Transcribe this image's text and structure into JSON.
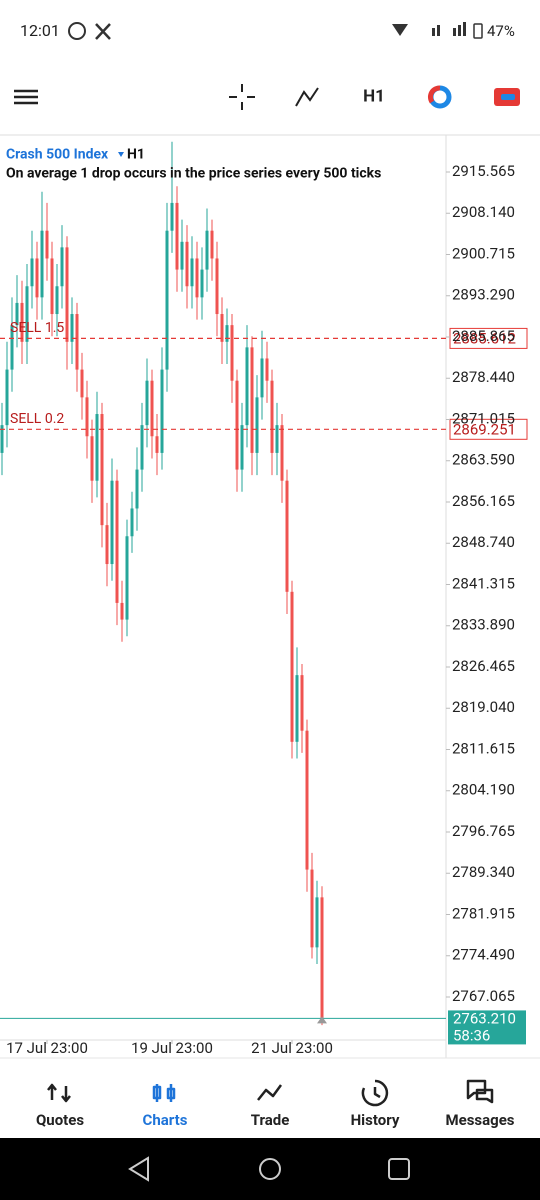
{
  "status_bar": {
    "time": "12:01",
    "battery": "47%"
  },
  "toolbar": {
    "timeframe": "H1"
  },
  "chart_data": {
    "type": "candlestick",
    "symbol": "Crash 500 Index",
    "timeframe": "H1",
    "description": "On average 1 drop occurs in the price series every 500 ticks",
    "up_color": "#26a69a",
    "down_color": "#ef5350",
    "open": [
      2865,
      2870,
      2880,
      2888,
      2892,
      2885,
      2895,
      2900,
      2893,
      2905,
      2900,
      2890,
      2895,
      2902,
      2885,
      2890,
      2880,
      2875,
      2868,
      2860,
      2872,
      2852,
      2845,
      2860,
      2838,
      2835,
      2850,
      2855,
      2862,
      2870,
      2878,
      2868,
      2865,
      2880,
      2905,
      2910,
      2898,
      2903,
      2895,
      2900,
      2893,
      2898,
      2905,
      2900,
      2890,
      2885,
      2888,
      2878,
      2862,
      2870,
      2884,
      2865,
      2875,
      2882,
      2878,
      2865,
      2870,
      2860,
      2840,
      2813,
      2825,
      2815,
      2790,
      2776,
      2785
    ],
    "high": [
      2874,
      2885,
      2893,
      2897,
      2896,
      2899,
      2905,
      2903,
      2912,
      2910,
      2903,
      2899,
      2906,
      2904,
      2893,
      2892,
      2883,
      2878,
      2871,
      2876,
      2874,
      2856,
      2864,
      2862,
      2842,
      2853,
      2858,
      2866,
      2874,
      2882,
      2880,
      2872,
      2884,
      2910,
      2921,
      2913,
      2907,
      2906,
      2904,
      2903,
      2902,
      2909,
      2907,
      2903,
      2893,
      2891,
      2890,
      2880,
      2874,
      2888,
      2886,
      2879,
      2887,
      2885,
      2880,
      2874,
      2872,
      2862,
      2842,
      2830,
      2827,
      2817,
      2793,
      2788,
      2787
    ],
    "low": [
      2861,
      2866,
      2876,
      2884,
      2881,
      2881,
      2891,
      2889,
      2889,
      2896,
      2886,
      2886,
      2891,
      2880,
      2881,
      2876,
      2871,
      2864,
      2856,
      2857,
      2848,
      2841,
      2842,
      2834,
      2831,
      2832,
      2847,
      2851,
      2858,
      2866,
      2864,
      2861,
      2862,
      2876,
      2901,
      2894,
      2894,
      2891,
      2891,
      2889,
      2889,
      2894,
      2896,
      2886,
      2881,
      2881,
      2874,
      2858,
      2858,
      2866,
      2861,
      2861,
      2871,
      2874,
      2861,
      2861,
      2856,
      2836,
      2810,
      2810,
      2811,
      2786,
      2774,
      2773,
      2762
    ],
    "close": [
      2870,
      2880,
      2888,
      2892,
      2885,
      2895,
      2900,
      2893,
      2905,
      2900,
      2890,
      2895,
      2902,
      2885,
      2890,
      2880,
      2875,
      2868,
      2860,
      2872,
      2852,
      2845,
      2860,
      2838,
      2835,
      2850,
      2855,
      2862,
      2870,
      2878,
      2868,
      2865,
      2880,
      2905,
      2910,
      2898,
      2903,
      2895,
      2900,
      2893,
      2898,
      2905,
      2900,
      2890,
      2885,
      2888,
      2878,
      2862,
      2870,
      2884,
      2865,
      2875,
      2882,
      2878,
      2865,
      2870,
      2860,
      2840,
      2813,
      2825,
      2815,
      2790,
      2776,
      2785,
      2763.21
    ],
    "ylim": [
      2759.325,
      2921.865
    ],
    "yticks": [
      2915.565,
      {
        "value": 2908.14,
        "label": "2908.140"
      },
      2900.715,
      {
        "value": 2893.29,
        "label": "2893.290"
      },
      2885.865,
      {
        "value": 2878.44,
        "label": "2878.440"
      },
      2871.015,
      {
        "value": 2863.59,
        "label": "2863.590"
      },
      2856.165,
      {
        "value": 2848.74,
        "label": "2848.740"
      },
      2841.315,
      {
        "value": 2833.89,
        "label": "2833.890"
      },
      2826.465,
      {
        "value": 2819.04,
        "label": "2819.040"
      },
      2811.615,
      {
        "value": 2804.19,
        "label": "2804.190"
      },
      2796.765,
      {
        "value": 2789.34,
        "label": "2789.340"
      },
      2781.915,
      {
        "value": 2774.49,
        "label": "2774.490"
      },
      2767.065
    ],
    "xticks": [
      {
        "value": 9,
        "label": "17 Jul 23:00"
      },
      {
        "value": 34,
        "label": "19 Jul 23:00"
      },
      {
        "value": 58,
        "label": "21 Jul 23:00"
      }
    ],
    "orders": [
      {
        "label": "SELL 1.5",
        "price": 2885.612
      },
      {
        "label": "SELL 0.2",
        "price": 2869.251
      }
    ],
    "current_price": {
      "value": 2763.21,
      "label": "2763.210"
    },
    "countdown": "58:36"
  },
  "bottom_nav": {
    "items": [
      "Quotes",
      "Charts",
      "Trade",
      "History",
      "Messages"
    ],
    "active": 1
  }
}
